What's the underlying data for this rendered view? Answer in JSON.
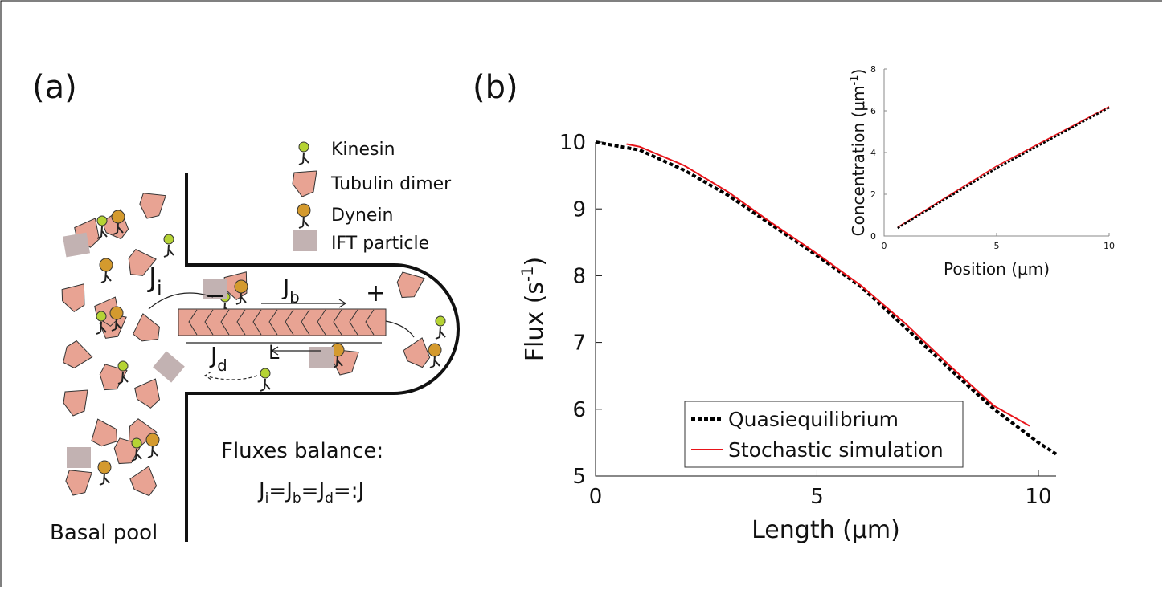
{
  "panel_a": {
    "label": "(a)",
    "legend": [
      "Kinesin",
      "Tubulin dimer",
      "Dynein",
      "IFT particle"
    ],
    "j_i": {
      "main": "J",
      "sub": "i"
    },
    "j_b": {
      "main": "J",
      "sub": "b"
    },
    "j_d": {
      "main": "J",
      "sub": "d"
    },
    "length": "L",
    "plus": "+",
    "minus": "−",
    "balance_title": "Fluxes balance:",
    "balance_eq": [
      "J",
      "i",
      "=J",
      "b",
      "=J",
      "d",
      "=:J"
    ],
    "pool": "Basal pool"
  },
  "panel_b_label": "(b)",
  "chart_data": [
    {
      "type": "line",
      "xlabel": "Length (μm)",
      "ylabel": {
        "text": "Flux (s",
        "sup": "-1",
        "end": ")"
      },
      "xlim": [
        0,
        10.4
      ],
      "ylim": [
        5,
        10
      ],
      "xticks": [
        0,
        5,
        10
      ],
      "yticks": [
        5,
        6,
        7,
        8,
        9,
        10
      ],
      "legend": "lower left",
      "series": [
        {
          "name": "Quasiequilibrium",
          "color": "#000000",
          "dashed": true,
          "x": [
            0,
            1,
            2,
            3,
            4,
            5,
            6,
            7,
            8,
            9,
            10,
            10.4
          ],
          "values": [
            10,
            9.88,
            9.58,
            9.2,
            8.75,
            8.3,
            7.83,
            7.22,
            6.6,
            6.0,
            5.5,
            5.33
          ]
        },
        {
          "name": "Stochastic simulation",
          "color": "#e8141a",
          "dashed": false,
          "x": [
            0.7,
            1,
            2,
            3,
            4,
            5,
            6,
            7,
            8,
            9,
            9.8
          ],
          "values": [
            9.97,
            9.93,
            9.65,
            9.25,
            8.78,
            8.33,
            7.85,
            7.28,
            6.65,
            6.05,
            5.75
          ]
        }
      ]
    },
    {
      "type": "line",
      "xlabel": "Position (μm)",
      "ylabel": {
        "text": "Concentration (μm",
        "sup": "-1",
        "end": ")"
      },
      "xlim": [
        0,
        10
      ],
      "ylim": [
        0,
        8
      ],
      "xticks": [
        0,
        5,
        10
      ],
      "yticks": [
        0,
        2,
        4,
        6,
        8
      ],
      "series": [
        {
          "color": "#e8141a",
          "dashed": false,
          "x": [
            0.6,
            5,
            10
          ],
          "values": [
            0.42,
            3.35,
            6.2
          ]
        },
        {
          "color": "#000000",
          "dashed": true,
          "x": [
            0.6,
            5,
            10
          ],
          "values": [
            0.38,
            3.25,
            6.15
          ]
        }
      ]
    }
  ]
}
